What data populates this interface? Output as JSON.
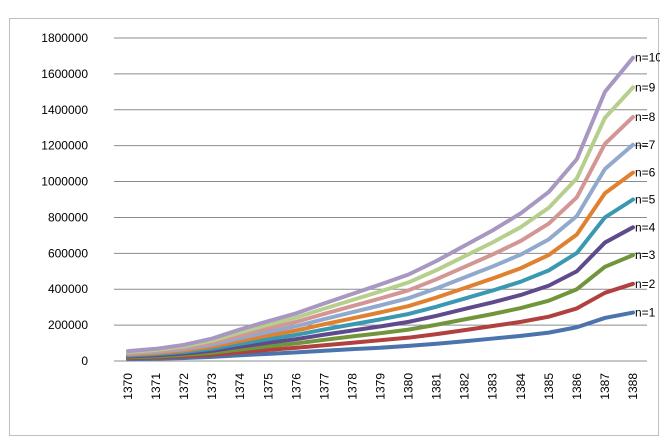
{
  "chart_data": {
    "type": "line",
    "title": "",
    "xlabel": "",
    "ylabel": "",
    "ylim": [
      0,
      1800000
    ],
    "y_ticks": [
      0,
      200000,
      400000,
      600000,
      800000,
      1000000,
      1200000,
      1400000,
      1600000,
      1800000
    ],
    "y_tick_labels": [
      "0",
      "200000",
      "400000",
      "600000",
      "800000",
      "1000000",
      "1200000",
      "1400000",
      "1600000",
      "1800000"
    ],
    "grid": true,
    "legend": "labels at right end of each line",
    "categories": [
      "1370",
      "1371",
      "1372",
      "1373",
      "1374",
      "1375",
      "1376",
      "1377",
      "1378",
      "1379",
      "1380",
      "1381",
      "1382",
      "1383",
      "1384",
      "1385",
      "1386",
      "1387",
      "1388"
    ],
    "series": [
      {
        "name": "n=1",
        "color": "#4a74ab",
        "values": [
          10000,
          13000,
          17000,
          23000,
          32000,
          40000,
          48000,
          57000,
          66000,
          74000,
          84000,
          96000,
          110000,
          125000,
          140000,
          158000,
          188000,
          240000,
          270000
        ]
      },
      {
        "name": "n=2",
        "color": "#b0413e",
        "values": [
          15000,
          20000,
          26000,
          35000,
          49000,
          62000,
          74000,
          88000,
          102000,
          116000,
          130000,
          150000,
          172000,
          195000,
          218000,
          247000,
          293000,
          380000,
          430000
        ]
      },
      {
        "name": "n=3",
        "color": "#71953a",
        "values": [
          20000,
          26000,
          34000,
          46000,
          64000,
          82000,
          98000,
          118000,
          137000,
          155000,
          175000,
          202000,
          232000,
          262000,
          295000,
          336000,
          400000,
          525000,
          590000
        ]
      },
      {
        "name": "n=4",
        "color": "#5f4b8b",
        "values": [
          25000,
          32000,
          42000,
          57000,
          80000,
          102000,
          122000,
          147000,
          170000,
          193000,
          218000,
          252000,
          290000,
          327000,
          368000,
          420000,
          500000,
          660000,
          745000
        ]
      },
      {
        "name": "n=5",
        "color": "#3a98b1",
        "values": [
          30000,
          38000,
          50000,
          68000,
          96000,
          122000,
          146000,
          176000,
          204000,
          232000,
          262000,
          303000,
          348000,
          393000,
          442000,
          505000,
          602000,
          800000,
          900000
        ]
      },
      {
        "name": "n=6",
        "color": "#e0812f",
        "values": [
          35000,
          44000,
          58000,
          80000,
          112000,
          142000,
          170000,
          205000,
          238000,
          271000,
          306000,
          354000,
          407000,
          460000,
          517000,
          591000,
          705000,
          935000,
          1050000
        ]
      },
      {
        "name": "n=7",
        "color": "#92a9ce",
        "values": [
          40000,
          50000,
          66000,
          91000,
          128000,
          162000,
          194000,
          234000,
          272000,
          310000,
          350000,
          405000,
          466000,
          527000,
          593000,
          678000,
          808000,
          1070000,
          1205000
        ]
      },
      {
        "name": "n=8",
        "color": "#d49695",
        "values": [
          45000,
          56000,
          74000,
          102000,
          144000,
          182000,
          218000,
          263000,
          306000,
          349000,
          394000,
          456000,
          525000,
          594000,
          669000,
          766000,
          912000,
          1210000,
          1360000
        ]
      },
      {
        "name": "n=9",
        "color": "#b6cf8c",
        "values": [
          50000,
          62000,
          82000,
          113000,
          160000,
          202000,
          242000,
          292000,
          340000,
          388000,
          438000,
          507000,
          584000,
          661000,
          746000,
          854000,
          1018000,
          1355000,
          1525000
        ]
      },
      {
        "name": "n=10",
        "color": "#a797c1",
        "values": [
          55000,
          68000,
          90000,
          125000,
          176000,
          222000,
          266000,
          321000,
          374000,
          427000,
          482000,
          558000,
          643000,
          728000,
          823000,
          942000,
          1125000,
          1500000,
          1690000
        ]
      }
    ]
  }
}
